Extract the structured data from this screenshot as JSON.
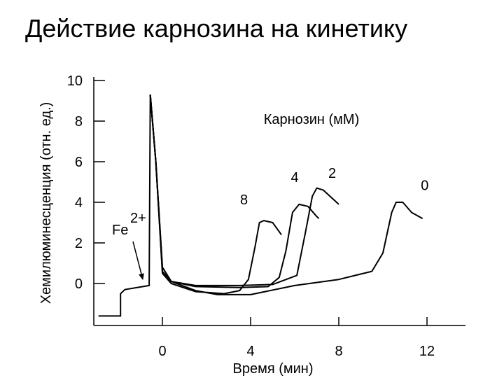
{
  "title": "Действие карнозина на кинетику",
  "chart_data": {
    "type": "line",
    "title": "Действие карнозина на кинетику",
    "xlabel": "Время (мин)",
    "ylabel": "Хемилюминесценция (отн. ед.)",
    "xlim": [
      -3,
      13.5
    ],
    "ylim": [
      -2,
      10
    ],
    "x_ticks": [
      "0",
      "4",
      "8",
      "12"
    ],
    "x_tick_values": [
      0,
      4,
      8,
      12
    ],
    "y_ticks": [
      "0",
      "2",
      "4",
      "6",
      "8",
      "10"
    ],
    "y_tick_values": [
      0,
      2,
      4,
      6,
      8,
      10
    ],
    "grid": false,
    "legend_title": "Карнозин (мМ)",
    "annotation": {
      "text": "Fe",
      "superscript": "2+",
      "arrow_to": [
        -0.7,
        0.0
      ]
    },
    "baseline": [
      [
        -2.9,
        -1.6
      ],
      [
        -1.9,
        -1.6
      ],
      [
        -1.9,
        -0.5
      ],
      [
        -1.7,
        -0.3
      ],
      [
        -0.6,
        -0.1
      ],
      [
        -0.55,
        9.3
      ]
    ],
    "series": [
      {
        "name": "8",
        "x": [
          -0.55,
          -0.3,
          0,
          0.4,
          1.5,
          2.8,
          3.5,
          3.9,
          4.2,
          4.4,
          4.6,
          5.0,
          5.4
        ],
        "y": [
          9.3,
          6.0,
          0.5,
          0.0,
          -0.4,
          -0.5,
          -0.35,
          0.2,
          1.8,
          3.0,
          3.1,
          3.0,
          2.4
        ]
      },
      {
        "name": "4",
        "x": [
          -0.55,
          -0.3,
          0,
          0.4,
          1.5,
          3.5,
          4.8,
          5.3,
          5.6,
          5.9,
          6.2,
          6.6,
          7.0,
          7.1
        ],
        "y": [
          9.3,
          6.0,
          0.6,
          0.1,
          -0.15,
          -0.2,
          -0.15,
          0.3,
          1.6,
          3.5,
          3.9,
          3.8,
          3.3,
          3.2
        ]
      },
      {
        "name": "2",
        "x": [
          -0.55,
          -0.3,
          0,
          0.4,
          1.5,
          3.5,
          5.0,
          6.1,
          6.5,
          6.8,
          7.0,
          7.3,
          7.7,
          8.0
        ],
        "y": [
          9.3,
          6.0,
          0.8,
          0.1,
          -0.1,
          -0.1,
          -0.05,
          0.4,
          2.6,
          4.3,
          4.7,
          4.6,
          4.2,
          3.9
        ]
      },
      {
        "name": "0",
        "x": [
          -0.55,
          -0.3,
          0,
          0.4,
          1.5,
          2.5,
          4.0,
          6.0,
          8.0,
          9.5,
          10.0,
          10.4,
          10.6,
          10.9,
          11.3,
          11.8
        ],
        "y": [
          9.3,
          6.0,
          0.8,
          0.1,
          -0.35,
          -0.55,
          -0.55,
          -0.1,
          0.2,
          0.6,
          1.5,
          3.5,
          4.0,
          4.0,
          3.5,
          3.2
        ]
      }
    ]
  }
}
